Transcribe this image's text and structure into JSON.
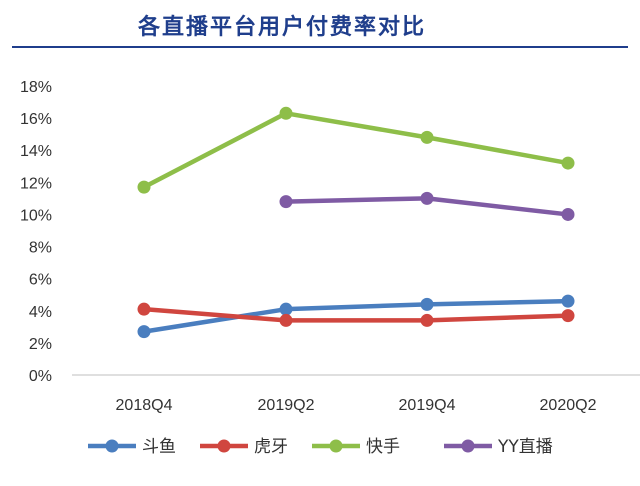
{
  "chart_data": {
    "type": "line",
    "title": "各直播平台用户付费率对比",
    "categories": [
      "2018Q4",
      "2019Q2",
      "2019Q4",
      "2020Q2"
    ],
    "y_ticks": [
      "0%",
      "2%",
      "4%",
      "6%",
      "8%",
      "10%",
      "12%",
      "14%",
      "16%",
      "18%"
    ],
    "ylim": [
      0,
      18
    ],
    "y_unit": "%",
    "grid": false,
    "legend_position": "bottom",
    "series": [
      {
        "name": "斗鱼",
        "color": "#4a7ebf",
        "values": [
          2.7,
          4.1,
          4.4,
          4.6
        ]
      },
      {
        "name": "虎牙",
        "color": "#d0463f",
        "values": [
          4.1,
          3.4,
          3.4,
          3.7
        ]
      },
      {
        "name": "快手",
        "color": "#8ebe49",
        "values": [
          11.7,
          16.3,
          14.8,
          13.2
        ]
      },
      {
        "name": "YY直播",
        "color": "#7f5ba4",
        "values": [
          null,
          10.8,
          11.0,
          10.0
        ]
      }
    ],
    "colors": {
      "title": "#1f3e8c",
      "title_rule": "#1f3e8c",
      "axis": "#bfbfbf",
      "tick_text": "#333333"
    }
  }
}
